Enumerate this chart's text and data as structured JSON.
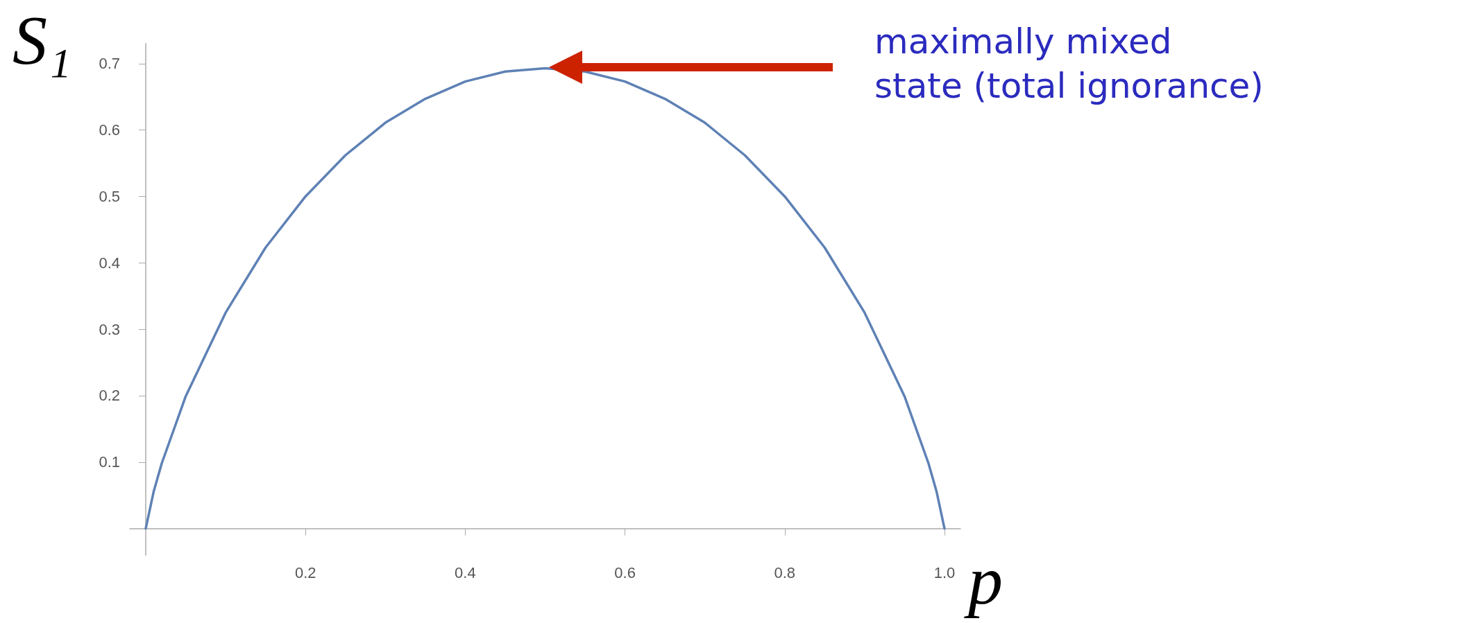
{
  "chart_data": {
    "type": "line",
    "xlabel": "p",
    "ylabel": "S₁",
    "x": [
      0,
      0.01,
      0.02,
      0.05,
      0.1,
      0.15,
      0.2,
      0.25,
      0.3,
      0.35,
      0.4,
      0.45,
      0.5,
      0.55,
      0.6,
      0.65,
      0.7,
      0.75,
      0.8,
      0.85,
      0.9,
      0.95,
      0.98,
      0.99,
      1
    ],
    "series": [
      {
        "color": "#5e81b5",
        "values": [
          0,
          0.056,
          0.098,
          0.199,
          0.325,
          0.423,
          0.5,
          0.562,
          0.611,
          0.647,
          0.673,
          0.688,
          0.693,
          0.688,
          0.673,
          0.647,
          0.611,
          0.562,
          0.5,
          0.423,
          0.325,
          0.199,
          0.098,
          0.056,
          0
        ]
      }
    ],
    "xlim": [
      -0.02,
      1.02
    ],
    "ylim": [
      -0.04,
      0.73
    ],
    "xticks": [
      0.2,
      0.4,
      0.6,
      0.8,
      {
        "value": 1,
        "label": "1.0"
      }
    ],
    "yticks": [
      0.1,
      0.2,
      0.3,
      0.4,
      0.5,
      0.6,
      0.7
    ],
    "annotations": [
      "maximally mixed\nstate (total ignorance)"
    ],
    "grid": false,
    "marker": "none",
    "line_style": "solid"
  }
}
